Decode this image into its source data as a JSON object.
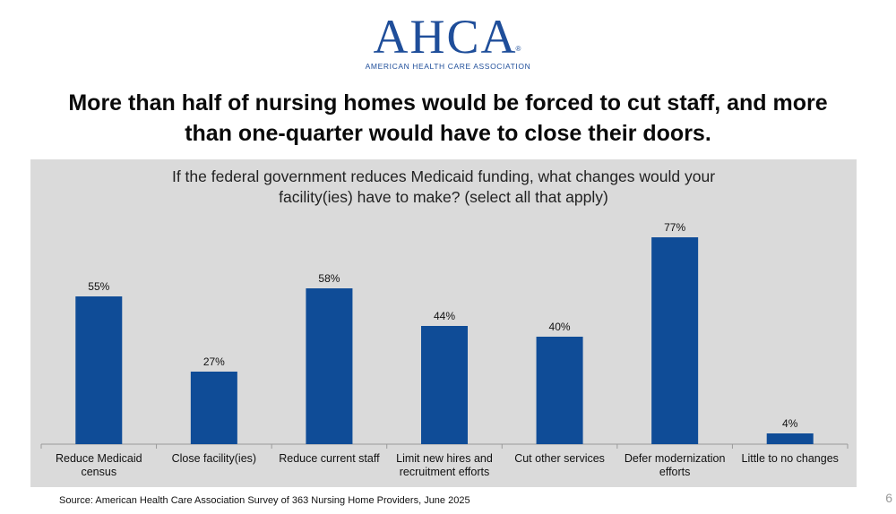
{
  "logo": {
    "wordmark": "AHCA",
    "registered": "®",
    "subtitle": "AMERICAN HEALTH CARE ASSOCIATION"
  },
  "headline": {
    "line1": "More than half of nursing homes would be forced to cut staff, and more",
    "line2": "than one-quarter would have to close their doors."
  },
  "colors": {
    "bar": "#0f4c97",
    "panel": "#dadada",
    "brand": "#1f4e9a"
  },
  "chart_data": {
    "type": "bar",
    "title": "If the federal government reduces Medicaid funding, what changes would your facility(ies) have to make? (select all that apply)",
    "title_lines": [
      "If the federal government reduces Medicaid funding, what changes would your",
      "facility(ies) have to make? (select all that apply)"
    ],
    "categories": [
      [
        "Reduce Medicaid",
        "census"
      ],
      [
        "Close facility(ies)"
      ],
      [
        "Reduce current staff"
      ],
      [
        "Limit new hires and",
        "recruitment efforts"
      ],
      [
        "Cut other services"
      ],
      [
        "Defer modernization",
        "efforts"
      ],
      [
        "Little to no changes"
      ]
    ],
    "values": [
      55,
      27,
      58,
      44,
      40,
      77,
      4
    ],
    "value_labels": [
      "55%",
      "27%",
      "58%",
      "44%",
      "40%",
      "77%",
      "4%"
    ],
    "ylim": [
      0,
      100
    ],
    "xlabel": "",
    "ylabel": "",
    "grid": false,
    "legend": "none"
  },
  "footer": {
    "source": "Source: American Health Care Association Survey of 363 Nursing Home Providers, June 2025",
    "page_number": "6"
  }
}
